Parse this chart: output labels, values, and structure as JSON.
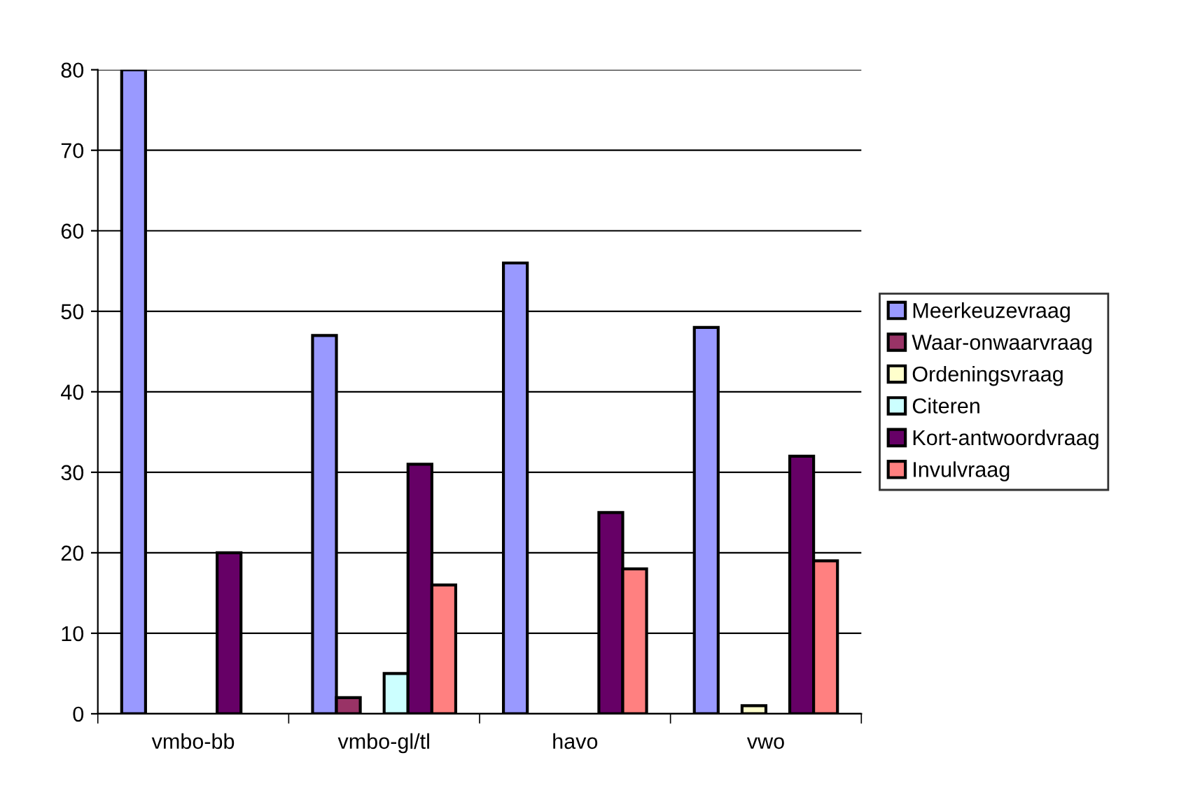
{
  "chart_data": {
    "type": "bar",
    "categories": [
      "vmbo-bb",
      "vmbo-gl/tl",
      "havo",
      "vwo"
    ],
    "series": [
      {
        "name": "Meerkeuzevraag",
        "color": "#9999ff",
        "values": [
          80,
          47,
          56,
          48
        ]
      },
      {
        "name": "Waar-onwaarvraag",
        "color": "#993366",
        "values": [
          null,
          2,
          null,
          null
        ]
      },
      {
        "name": "Ordeningsvraag",
        "color": "#ffffcc",
        "values": [
          null,
          null,
          null,
          1
        ]
      },
      {
        "name": "Citeren",
        "color": "#ccffff",
        "values": [
          null,
          5,
          null,
          null
        ]
      },
      {
        "name": "Kort-antwoordvraag",
        "color": "#660066",
        "values": [
          20,
          31,
          25,
          32
        ]
      },
      {
        "name": "Invulvraag",
        "color": "#ff8080",
        "values": [
          null,
          16,
          18,
          19
        ]
      }
    ],
    "ylim": [
      0,
      80
    ],
    "yticks": [
      0,
      10,
      20,
      30,
      40,
      50,
      60,
      70,
      80
    ],
    "grid": "y",
    "legend": "right"
  }
}
